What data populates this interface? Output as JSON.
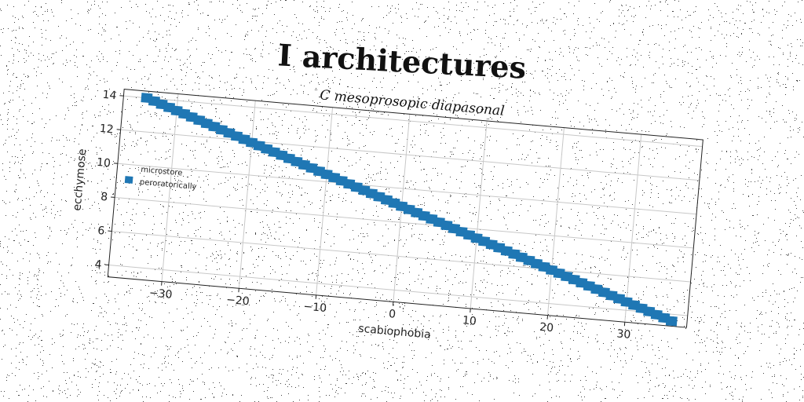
{
  "chart_data": {
    "type": "scatter",
    "title": "I architectures",
    "subtitle": "C mesoprosopic diapasonal",
    "xlabel": "scabiophobia",
    "ylabel": "ecchymose",
    "xlim": [
      -37,
      38
    ],
    "ylim": [
      3.3,
      14.4
    ],
    "xticks": [
      -30,
      -20,
      -10,
      0,
      10,
      20,
      30
    ],
    "yticks": [
      4,
      6,
      8,
      10,
      12,
      14
    ],
    "grid": true,
    "legend": {
      "placement": "center-left",
      "entries": [
        "microstore",
        "peroratorically"
      ]
    },
    "series": [
      {
        "name": "peroratorically",
        "color": "#1f77b4",
        "marker": "square",
        "x_start": -34,
        "x_end": 36,
        "count": 71,
        "y_start": 14.0,
        "y_end": 3.6
      }
    ]
  }
}
